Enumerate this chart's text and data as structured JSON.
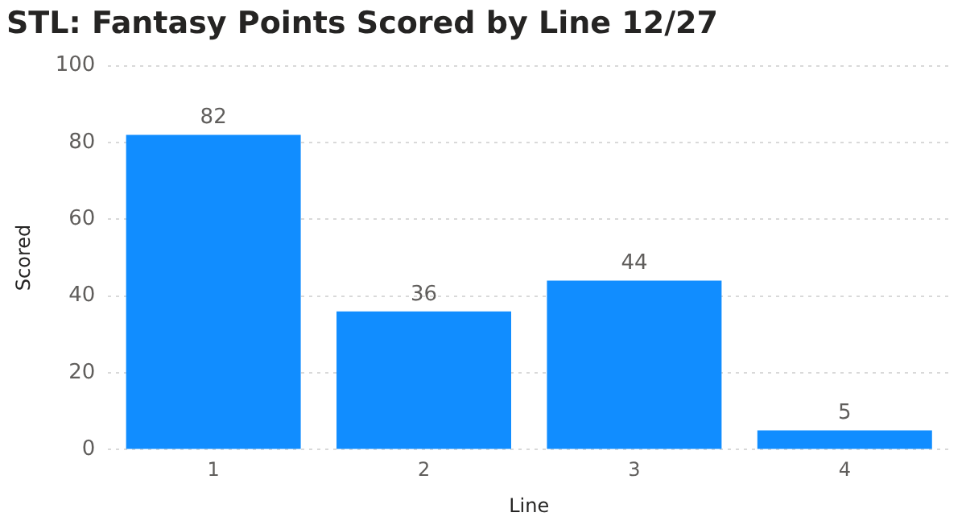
{
  "chart_data": {
    "type": "bar",
    "title": "STL: Fantasy Points Scored by Line 12/27",
    "xlabel": "Line",
    "ylabel": "Scored",
    "categories": [
      "1",
      "2",
      "3",
      "4"
    ],
    "values": [
      82,
      36,
      44,
      5
    ],
    "color": "#118dff",
    "ylim": [
      0,
      100
    ],
    "yticks": [
      0,
      20,
      40,
      60,
      80,
      100
    ],
    "grid": "y",
    "data_labels": true
  }
}
